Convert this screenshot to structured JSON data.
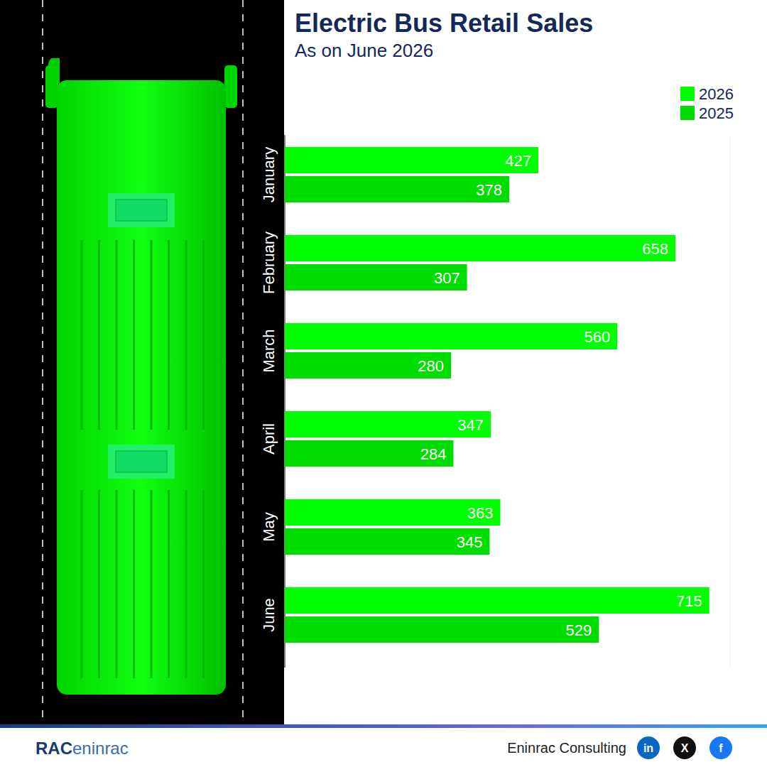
{
  "chart_data": {
    "type": "bar",
    "orientation": "horizontal",
    "title": "Electric Bus Retail Sales",
    "subtitle": "As on June 2026",
    "categories": [
      "January",
      "February",
      "March",
      "April",
      "May",
      "June"
    ],
    "series": [
      {
        "name": "2026",
        "color": "#00ff00",
        "values": [
          427,
          658,
          560,
          347,
          363,
          715
        ]
      },
      {
        "name": "2025",
        "color": "#00dd00",
        "values": [
          378,
          307,
          280,
          284,
          345,
          529
        ]
      }
    ],
    "xlim": [
      0,
      750
    ],
    "tick_labels": false,
    "grid": false,
    "data_labels": true,
    "legend": "top-right"
  },
  "footer": {
    "logo": [
      "RAC",
      "eninrac"
    ],
    "brand": "Eninrac Consulting",
    "social": [
      "in",
      "X",
      "f"
    ]
  }
}
